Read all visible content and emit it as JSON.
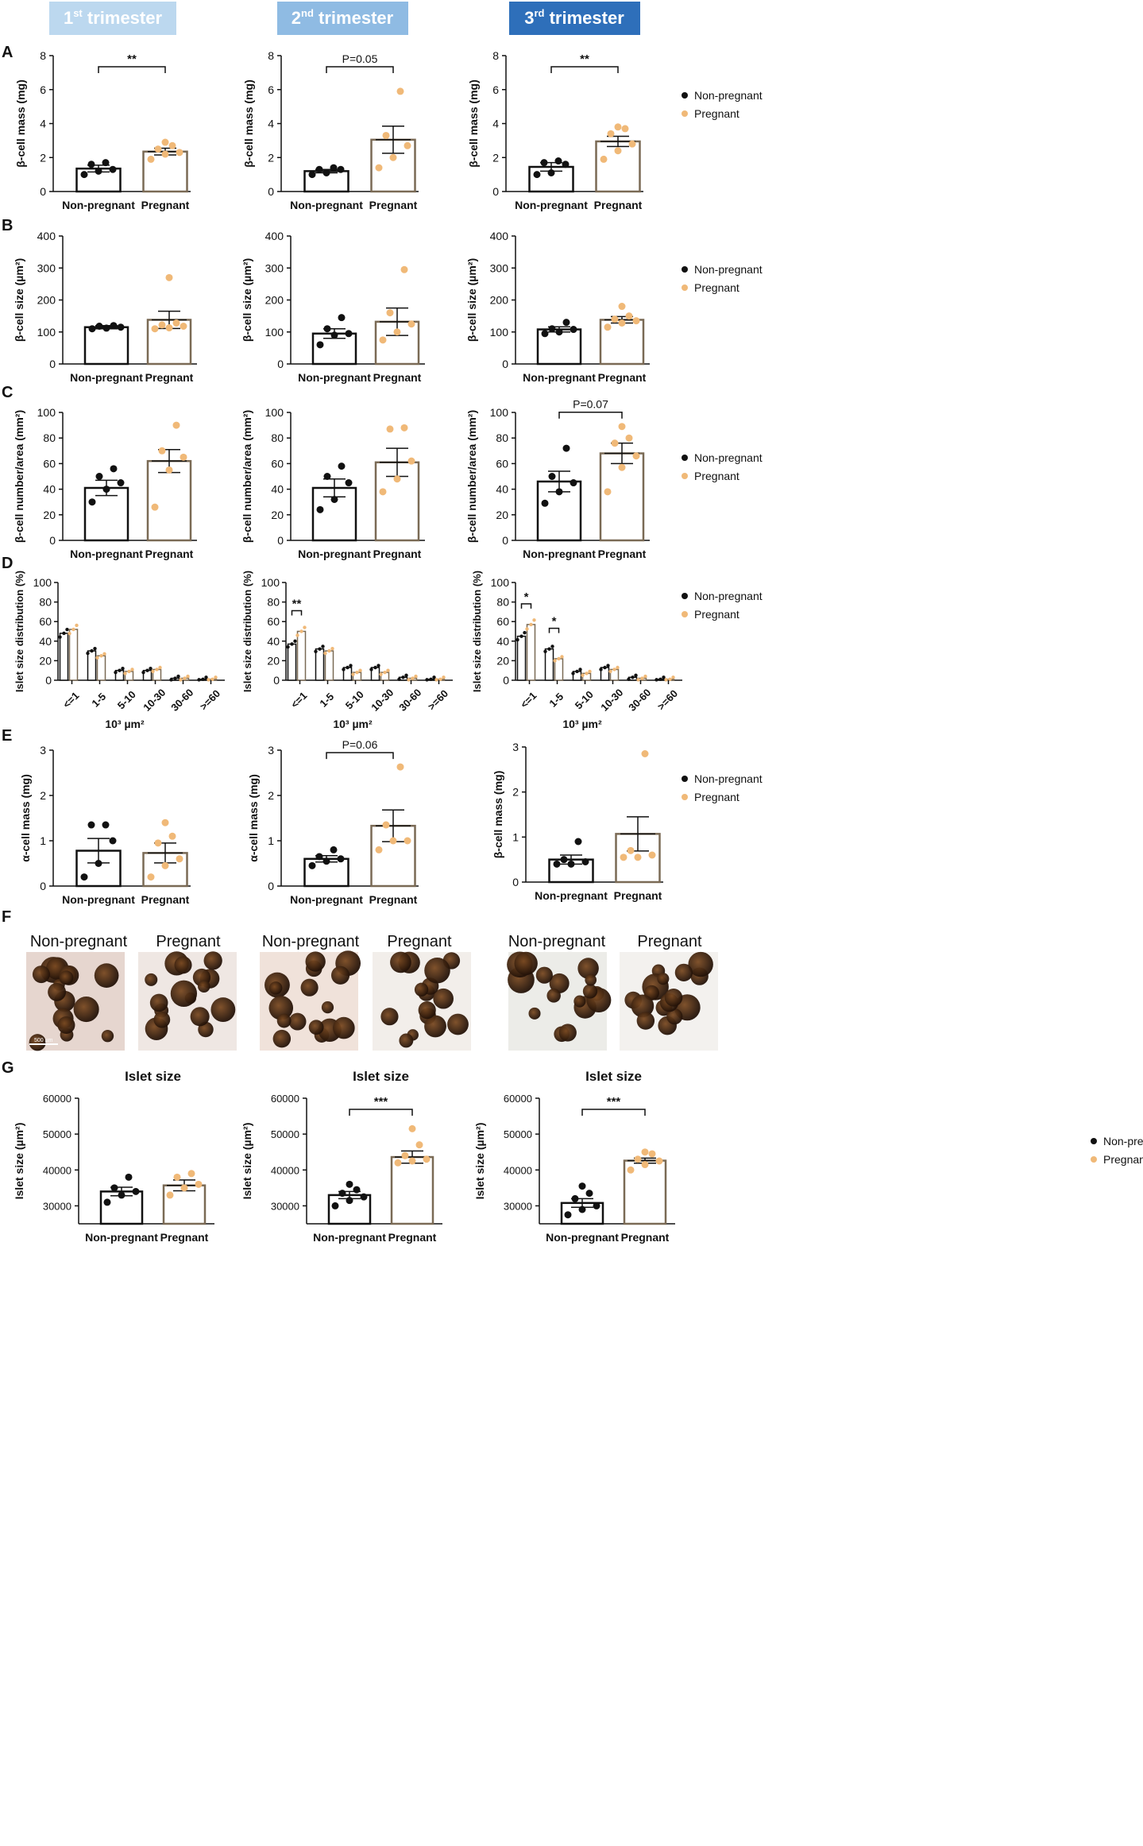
{
  "figure": {
    "headers": [
      {
        "sup": "st",
        "num": "1",
        "rest": " trimester",
        "color": "#bcd8ef"
      },
      {
        "sup": "nd",
        "num": "2",
        "rest": " trimester",
        "color": "#8fbbe3"
      },
      {
        "sup": "rd",
        "num": "3",
        "rest": " trimester",
        "color": "#2e6fba"
      }
    ],
    "panel_letters": [
      "A",
      "B",
      "C",
      "D",
      "E",
      "F",
      "G"
    ],
    "legend": {
      "non_pregnant": "Non-pregnant",
      "pregnant": "Pregnant"
    },
    "colors": {
      "non_pregnant": "#111111",
      "pregnant": "#f0b978",
      "pregnant_bar": "#7a6a55"
    },
    "micro": {
      "labels": [
        "Non-pregnant",
        "Pregnant"
      ],
      "scale_bar": "500 µm"
    }
  },
  "chart_data": [
    {
      "panel": "A",
      "column": 1,
      "type": "bar",
      "ylabel": "β-cell mass (mg)",
      "ylim": [
        0,
        8
      ],
      "yticks": [
        0,
        2,
        4,
        6,
        8
      ],
      "categories": [
        "Non-pregnant",
        "Pregnant"
      ],
      "series": [
        {
          "name": "Non-pregnant",
          "mean": 1.35,
          "sem": 0.2,
          "points": [
            1.0,
            1.2,
            1.3,
            1.6,
            1.7
          ]
        },
        {
          "name": "Pregnant",
          "mean": 2.35,
          "sem": 0.2,
          "points": [
            1.9,
            2.2,
            2.3,
            2.5,
            2.7,
            2.9
          ]
        }
      ],
      "annotation": "**"
    },
    {
      "panel": "A",
      "column": 2,
      "type": "bar",
      "ylabel": "β-cell mass (mg)",
      "ylim": [
        0,
        8
      ],
      "yticks": [
        0,
        2,
        4,
        6,
        8
      ],
      "categories": [
        "Non-pregnant",
        "Pregnant"
      ],
      "series": [
        {
          "name": "Non-pregnant",
          "mean": 1.2,
          "sem": 0.1,
          "points": [
            1.0,
            1.1,
            1.3,
            1.3,
            1.4
          ]
        },
        {
          "name": "Pregnant",
          "mean": 3.05,
          "sem": 0.8,
          "points": [
            1.4,
            2.0,
            2.7,
            3.3,
            5.9
          ]
        }
      ],
      "annotation": "P=0.05"
    },
    {
      "panel": "A",
      "column": 3,
      "type": "bar",
      "ylabel": "β-cell mass (mg)",
      "ylim": [
        0,
        8
      ],
      "yticks": [
        0,
        2,
        4,
        6,
        8
      ],
      "categories": [
        "Non-pregnant",
        "Pregnant"
      ],
      "series": [
        {
          "name": "Non-pregnant",
          "mean": 1.45,
          "sem": 0.25,
          "points": [
            1.0,
            1.1,
            1.6,
            1.7,
            1.8
          ]
        },
        {
          "name": "Pregnant",
          "mean": 2.95,
          "sem": 0.3,
          "points": [
            1.9,
            2.4,
            2.8,
            3.4,
            3.7,
            3.8
          ]
        }
      ],
      "annotation": "**"
    },
    {
      "panel": "B",
      "column": 1,
      "type": "bar",
      "ylabel": "β-cell size (µm²)",
      "ylim": [
        0,
        400
      ],
      "yticks": [
        0,
        100,
        200,
        300,
        400
      ],
      "categories": [
        "Non-pregnant",
        "Pregnant"
      ],
      "series": [
        {
          "name": "Non-pregnant",
          "mean": 115,
          "sem": 5,
          "points": [
            110,
            112,
            115,
            118,
            120
          ]
        },
        {
          "name": "Pregnant",
          "mean": 138,
          "sem": 27,
          "points": [
            110,
            113,
            118,
            122,
            128,
            270
          ]
        }
      ],
      "annotation": ""
    },
    {
      "panel": "B",
      "column": 2,
      "type": "bar",
      "ylabel": "β-cell size (µm²)",
      "ylim": [
        0,
        400
      ],
      "yticks": [
        0,
        100,
        200,
        300,
        400
      ],
      "categories": [
        "Non-pregnant",
        "Pregnant"
      ],
      "series": [
        {
          "name": "Non-pregnant",
          "mean": 95,
          "sem": 15,
          "points": [
            60,
            90,
            95,
            110,
            145
          ]
        },
        {
          "name": "Pregnant",
          "mean": 132,
          "sem": 43,
          "points": [
            75,
            100,
            125,
            160,
            295
          ]
        }
      ],
      "annotation": ""
    },
    {
      "panel": "B",
      "column": 3,
      "type": "bar",
      "ylabel": "β-cell size (µm²)",
      "ylim": [
        0,
        400
      ],
      "yticks": [
        0,
        100,
        200,
        300,
        400
      ],
      "categories": [
        "Non-pregnant",
        "Pregnant"
      ],
      "series": [
        {
          "name": "Non-pregnant",
          "mean": 108,
          "sem": 8,
          "points": [
            95,
            100,
            108,
            110,
            130
          ]
        },
        {
          "name": "Pregnant",
          "mean": 138,
          "sem": 10,
          "points": [
            115,
            128,
            135,
            140,
            150,
            180
          ]
        }
      ],
      "annotation": ""
    },
    {
      "panel": "C",
      "column": 1,
      "type": "bar",
      "ylabel": "β-cell number/area (mm²)",
      "ylim": [
        0,
        100
      ],
      "yticks": [
        0,
        20,
        40,
        60,
        80,
        100
      ],
      "categories": [
        "Non-pregnant",
        "Pregnant"
      ],
      "series": [
        {
          "name": "Non-pregnant",
          "mean": 41,
          "sem": 6,
          "points": [
            30,
            40,
            45,
            50,
            56
          ]
        },
        {
          "name": "Pregnant",
          "mean": 62,
          "sem": 9,
          "points": [
            26,
            55,
            65,
            70,
            90
          ]
        }
      ],
      "annotation": ""
    },
    {
      "panel": "C",
      "column": 2,
      "type": "bar",
      "ylabel": "β-cell number/area (mm²)",
      "ylim": [
        0,
        100
      ],
      "yticks": [
        0,
        20,
        40,
        60,
        80,
        100
      ],
      "categories": [
        "Non-pregnant",
        "Pregnant"
      ],
      "series": [
        {
          "name": "Non-pregnant",
          "mean": 41,
          "sem": 7,
          "points": [
            24,
            32,
            45,
            50,
            58
          ]
        },
        {
          "name": "Pregnant",
          "mean": 61,
          "sem": 11,
          "points": [
            38,
            48,
            62,
            87,
            88
          ]
        }
      ],
      "annotation": ""
    },
    {
      "panel": "C",
      "column": 3,
      "type": "bar",
      "ylabel": "β-cell number/area (mm²)",
      "ylim": [
        0,
        100
      ],
      "yticks": [
        0,
        20,
        40,
        60,
        80,
        100
      ],
      "categories": [
        "Non-pregnant",
        "Pregnant"
      ],
      "series": [
        {
          "name": "Non-pregnant",
          "mean": 46,
          "sem": 8,
          "points": [
            29,
            38,
            45,
            50,
            72
          ]
        },
        {
          "name": "Pregnant",
          "mean": 68,
          "sem": 8,
          "points": [
            38,
            57,
            66,
            76,
            80,
            89
          ]
        }
      ],
      "annotation": "P=0.07"
    },
    {
      "panel": "D",
      "column": 1,
      "type": "grouped-bar",
      "ylabel": "Islet size distribution (%)",
      "xlabel": "10³ µm²",
      "ylim": [
        0,
        100
      ],
      "yticks": [
        0,
        20,
        40,
        60,
        80,
        100
      ],
      "categories": [
        "<=1",
        "1-5",
        "5-10",
        "10-30",
        "30-60",
        ">=60"
      ],
      "series": [
        {
          "name": "Non-pregnant",
          "values": [
            48,
            30,
            10,
            10,
            2,
            1
          ]
        },
        {
          "name": "Pregnant",
          "values": [
            52,
            25,
            9,
            11,
            2,
            1
          ]
        }
      ],
      "annotations": []
    },
    {
      "panel": "D",
      "column": 2,
      "type": "grouped-bar",
      "ylabel": "Islet size distribution (%)",
      "xlabel": "10³ µm²",
      "ylim": [
        0,
        100
      ],
      "yticks": [
        0,
        20,
        40,
        60,
        80,
        100
      ],
      "categories": [
        "<=1",
        "1-5",
        "5-10",
        "10-30",
        "30-60",
        ">=60"
      ],
      "series": [
        {
          "name": "Non-pregnant",
          "values": [
            37,
            32,
            13,
            13,
            3,
            1
          ]
        },
        {
          "name": "Pregnant",
          "values": [
            50,
            30,
            8,
            8,
            2,
            1
          ]
        }
      ],
      "annotations": [
        {
          "category": "<=1",
          "text": "**"
        }
      ]
    },
    {
      "panel": "D",
      "column": 3,
      "type": "grouped-bar",
      "ylabel": "Islet size distribution (%)",
      "xlabel": "10³ µm²",
      "ylim": [
        0,
        100
      ],
      "yticks": [
        0,
        20,
        40,
        60,
        80,
        100
      ],
      "categories": [
        "<=1",
        "1-5",
        "5-10",
        "10-30",
        "30-60",
        ">=60"
      ],
      "series": [
        {
          "name": "Non-pregnant",
          "values": [
            45,
            32,
            9,
            13,
            3,
            1
          ]
        },
        {
          "name": "Pregnant",
          "values": [
            57,
            22,
            7,
            11,
            2,
            1
          ]
        }
      ],
      "annotations": [
        {
          "category": "<=1",
          "text": "*"
        },
        {
          "category": "1-5",
          "text": "*"
        }
      ]
    },
    {
      "panel": "E",
      "column": 1,
      "type": "bar",
      "ylabel": "α-cell mass (mg)",
      "ylim": [
        0,
        3
      ],
      "yticks": [
        0,
        1,
        2,
        3
      ],
      "categories": [
        "Non-pregnant",
        "Pregnant"
      ],
      "series": [
        {
          "name": "Non-pregnant",
          "mean": 0.78,
          "sem": 0.27,
          "points": [
            0.2,
            0.5,
            1.0,
            1.35,
            1.35
          ]
        },
        {
          "name": "Pregnant",
          "mean": 0.73,
          "sem": 0.22,
          "points": [
            0.2,
            0.45,
            0.6,
            0.95,
            1.1,
            1.4
          ]
        }
      ],
      "annotation": ""
    },
    {
      "panel": "E",
      "column": 2,
      "type": "bar",
      "ylabel": "α-cell mass (mg)",
      "ylim": [
        0,
        3
      ],
      "yticks": [
        0,
        1,
        2,
        3
      ],
      "categories": [
        "Non-pregnant",
        "Pregnant"
      ],
      "series": [
        {
          "name": "Non-pregnant",
          "mean": 0.6,
          "sem": 0.07,
          "points": [
            0.45,
            0.55,
            0.6,
            0.65,
            0.8
          ]
        },
        {
          "name": "Pregnant",
          "mean": 1.33,
          "sem": 0.35,
          "points": [
            0.8,
            1.0,
            1.0,
            1.35,
            2.63
          ]
        }
      ],
      "annotation": "P=0.06"
    },
    {
      "panel": "E",
      "column": 3,
      "type": "bar",
      "ylabel": "β-cell mass (mg)",
      "ylim": [
        0,
        3
      ],
      "yticks": [
        0,
        1,
        2,
        3
      ],
      "categories": [
        "Non-pregnant",
        "Pregnant"
      ],
      "series": [
        {
          "name": "Non-pregnant",
          "mean": 0.5,
          "sem": 0.1,
          "points": [
            0.4,
            0.4,
            0.45,
            0.5,
            0.9
          ]
        },
        {
          "name": "Pregnant",
          "mean": 1.07,
          "sem": 0.38,
          "points": [
            0.55,
            0.55,
            0.6,
            0.7,
            2.85
          ]
        }
      ],
      "annotation": ""
    },
    {
      "panel": "G",
      "column": 1,
      "type": "bar",
      "title": "Islet size",
      "ylabel": "Islet size (µm²)",
      "ylim": [
        25000,
        60000
      ],
      "yticks": [
        30000,
        40000,
        50000,
        60000
      ],
      "categories": [
        "Non-pregnant",
        "Pregnant"
      ],
      "series": [
        {
          "name": "Non-pregnant",
          "mean": 34000,
          "sem": 1200,
          "points": [
            31000,
            33000,
            34000,
            35000,
            38000
          ]
        },
        {
          "name": "Pregnant",
          "mean": 35700,
          "sem": 1500,
          "points": [
            33000,
            35000,
            36000,
            38000,
            39000
          ]
        }
      ],
      "annotation": ""
    },
    {
      "panel": "G",
      "column": 2,
      "type": "bar",
      "title": "Islet size",
      "ylabel": "Islet size (µm²)",
      "ylim": [
        25000,
        60000
      ],
      "yticks": [
        30000,
        40000,
        50000,
        60000
      ],
      "categories": [
        "Non-pregnant",
        "Pregnant"
      ],
      "series": [
        {
          "name": "Non-pregnant",
          "mean": 33000,
          "sem": 1000,
          "points": [
            30000,
            31500,
            32500,
            33500,
            34500,
            36000
          ]
        },
        {
          "name": "Pregnant",
          "mean": 43600,
          "sem": 1700,
          "points": [
            42000,
            42500,
            43000,
            44000,
            47000,
            51500
          ]
        }
      ],
      "annotation": "***"
    },
    {
      "panel": "G",
      "column": 3,
      "type": "bar",
      "title": "Islet size",
      "ylabel": "Islet size (µm²)",
      "ylim": [
        25000,
        60000
      ],
      "yticks": [
        30000,
        40000,
        50000,
        60000
      ],
      "categories": [
        "Non-pregnant",
        "Pregnant"
      ],
      "series": [
        {
          "name": "Non-pregnant",
          "mean": 30800,
          "sem": 1200,
          "points": [
            27500,
            29000,
            30000,
            32000,
            33500,
            35500
          ]
        },
        {
          "name": "Pregnant",
          "mean": 42600,
          "sem": 700,
          "points": [
            40000,
            41500,
            42500,
            43000,
            44500,
            45000
          ]
        }
      ],
      "annotation": "***"
    }
  ]
}
